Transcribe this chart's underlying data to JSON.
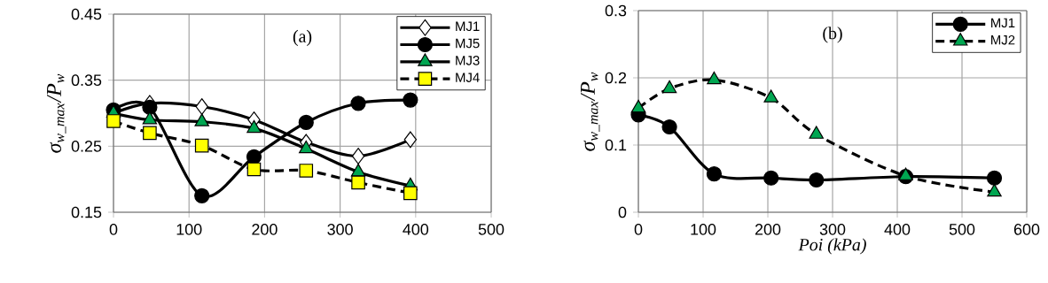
{
  "chart_data": [
    {
      "type": "line",
      "annotations": [
        "(a)"
      ],
      "ylabel": "σ$_{w_max}$/P$_{w}$",
      "xlim": [
        0,
        500
      ],
      "xticks": [
        0,
        100,
        200,
        300,
        400,
        500
      ],
      "ylim": [
        0.15,
        0.45
      ],
      "yticks": [
        0.15,
        0.25,
        0.35,
        0.45
      ],
      "grid": true,
      "legend": "top right",
      "series": [
        {
          "name": "MJ1",
          "color": "#ffffff",
          "marker": "diamond",
          "line_style": "solid",
          "x": [
            0,
            48,
            117,
            186,
            255,
            324,
            393
          ],
          "values": [
            0.3,
            0.315,
            0.31,
            0.29,
            0.256,
            0.235,
            0.26
          ]
        },
        {
          "name": "MJ5",
          "color": "#000000",
          "marker": "circle",
          "line_style": "solid",
          "x": [
            0,
            48,
            117,
            186,
            255,
            324,
            393
          ],
          "values": [
            0.305,
            0.309,
            0.175,
            0.234,
            0.286,
            0.315,
            0.32
          ]
        },
        {
          "name": "MJ3",
          "color": "#00a651",
          "marker": "triangle",
          "line_style": "solid",
          "x": [
            0,
            48,
            117,
            186,
            255,
            324,
            393
          ],
          "values": [
            0.3,
            0.29,
            0.287,
            0.277,
            0.246,
            0.211,
            0.19
          ]
        },
        {
          "name": "MJ4",
          "color": "#ffff00",
          "marker": "square",
          "line_style": "dashed",
          "x": [
            0,
            48,
            117,
            186,
            255,
            324,
            393
          ],
          "values": [
            0.288,
            0.27,
            0.251,
            0.215,
            0.213,
            0.195,
            0.179
          ]
        }
      ]
    },
    {
      "type": "line",
      "annotations": [
        "(b)"
      ],
      "ylabel": "σ$_{w_max}$/P$_{w}$",
      "xlabel": "Poi (kPa)",
      "xlim": [
        0,
        600
      ],
      "xticks": [
        0,
        100,
        200,
        300,
        400,
        500,
        600
      ],
      "ylim": [
        0,
        0.3
      ],
      "yticks": [
        0,
        0.1,
        0.2,
        0.3
      ],
      "grid": true,
      "legend": "top right",
      "series": [
        {
          "name": "MJ1",
          "color": "#000000",
          "marker": "circle",
          "line_style": "solid",
          "x": [
            0,
            48,
            117,
            205,
            275,
            413,
            550
          ],
          "values": [
            0.145,
            0.127,
            0.057,
            0.051,
            0.048,
            0.053,
            0.051
          ]
        },
        {
          "name": "MJ2",
          "color": "#00a651",
          "marker": "triangle",
          "line_style": "dashed",
          "x": [
            0,
            48,
            117,
            205,
            275,
            413,
            550
          ],
          "values": [
            0.155,
            0.184,
            0.197,
            0.17,
            0.116,
            0.054,
            0.03
          ]
        }
      ]
    }
  ]
}
